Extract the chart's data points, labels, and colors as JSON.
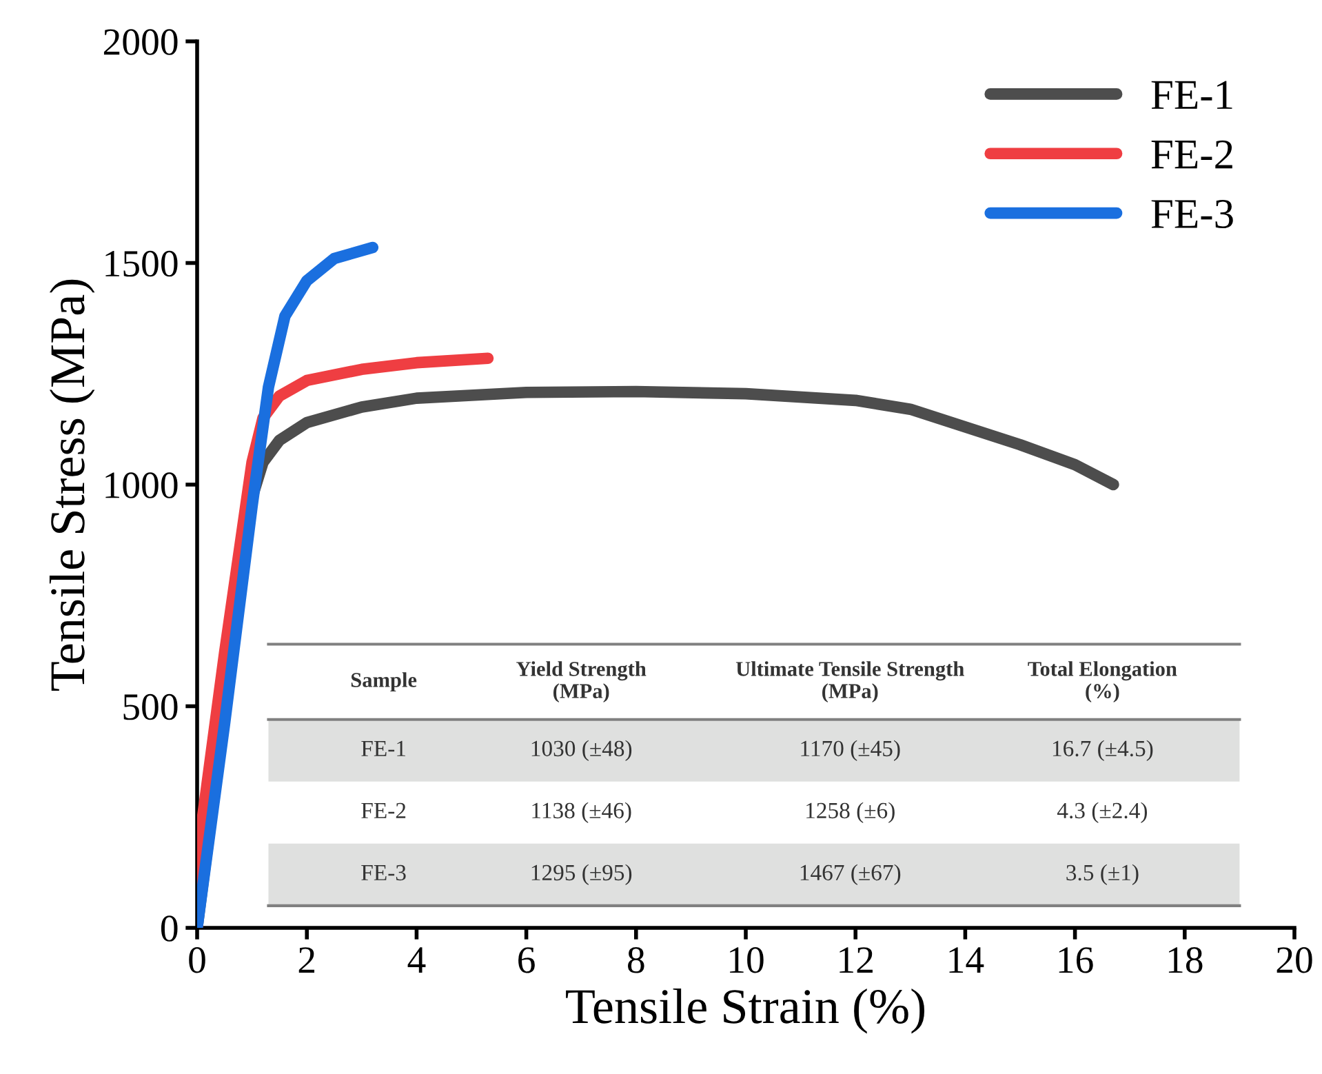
{
  "chart_data": {
    "type": "line",
    "xlabel": "Tensile Strain (%)",
    "ylabel": "Tensile Stress (MPa)",
    "xlim": [
      0,
      20
    ],
    "ylim": [
      0,
      2000
    ],
    "xticks": [
      0,
      2,
      4,
      6,
      8,
      10,
      12,
      14,
      16,
      18,
      20
    ],
    "yticks": [
      0,
      500,
      1000,
      1500,
      2000
    ],
    "grid": false,
    "legend": "top right",
    "marker": "none",
    "line_style": "solid",
    "series": [
      {
        "name": "FE-1",
        "color": "#4d4d4d",
        "x": [
          0,
          0.5,
          1.0,
          1.2,
          1.5,
          2,
          3,
          4,
          6,
          8,
          10,
          12,
          13,
          14,
          15,
          16,
          16.7
        ],
        "values": [
          0,
          480,
          970,
          1050,
          1100,
          1140,
          1175,
          1195,
          1208,
          1210,
          1205,
          1190,
          1170,
          1130,
          1090,
          1045,
          1000
        ]
      },
      {
        "name": "FE-2",
        "color": "#ef3e42",
        "x": [
          0,
          0.1,
          0.5,
          1.0,
          1.2,
          1.5,
          2,
          3,
          4,
          5.3
        ],
        "values": [
          0,
          250,
          620,
          1050,
          1150,
          1200,
          1235,
          1260,
          1275,
          1285
        ]
      },
      {
        "name": "FE-3",
        "color": "#1a6fdf",
        "x": [
          0,
          0.5,
          1.0,
          1.3,
          1.6,
          2,
          2.5,
          3.2
        ],
        "values": [
          0,
          460,
          950,
          1220,
          1380,
          1460,
          1510,
          1535
        ]
      }
    ],
    "annotations": [
      "Sample",
      "Yield Strength\n(MPa)",
      "Ultimate Tensile Strength\n(MPa)",
      "Total Elongation\n(%)",
      "FE-1",
      "1030 (±48)",
      "1170 (±45)",
      "16.7 (±4.5)",
      "FE-2",
      "1138 (±46)",
      "1258 (±6)",
      "4.3 (±2.4)",
      "FE-3",
      "1295 (±95)",
      "1467 (±67)",
      "3.5 (±1)"
    ]
  }
}
